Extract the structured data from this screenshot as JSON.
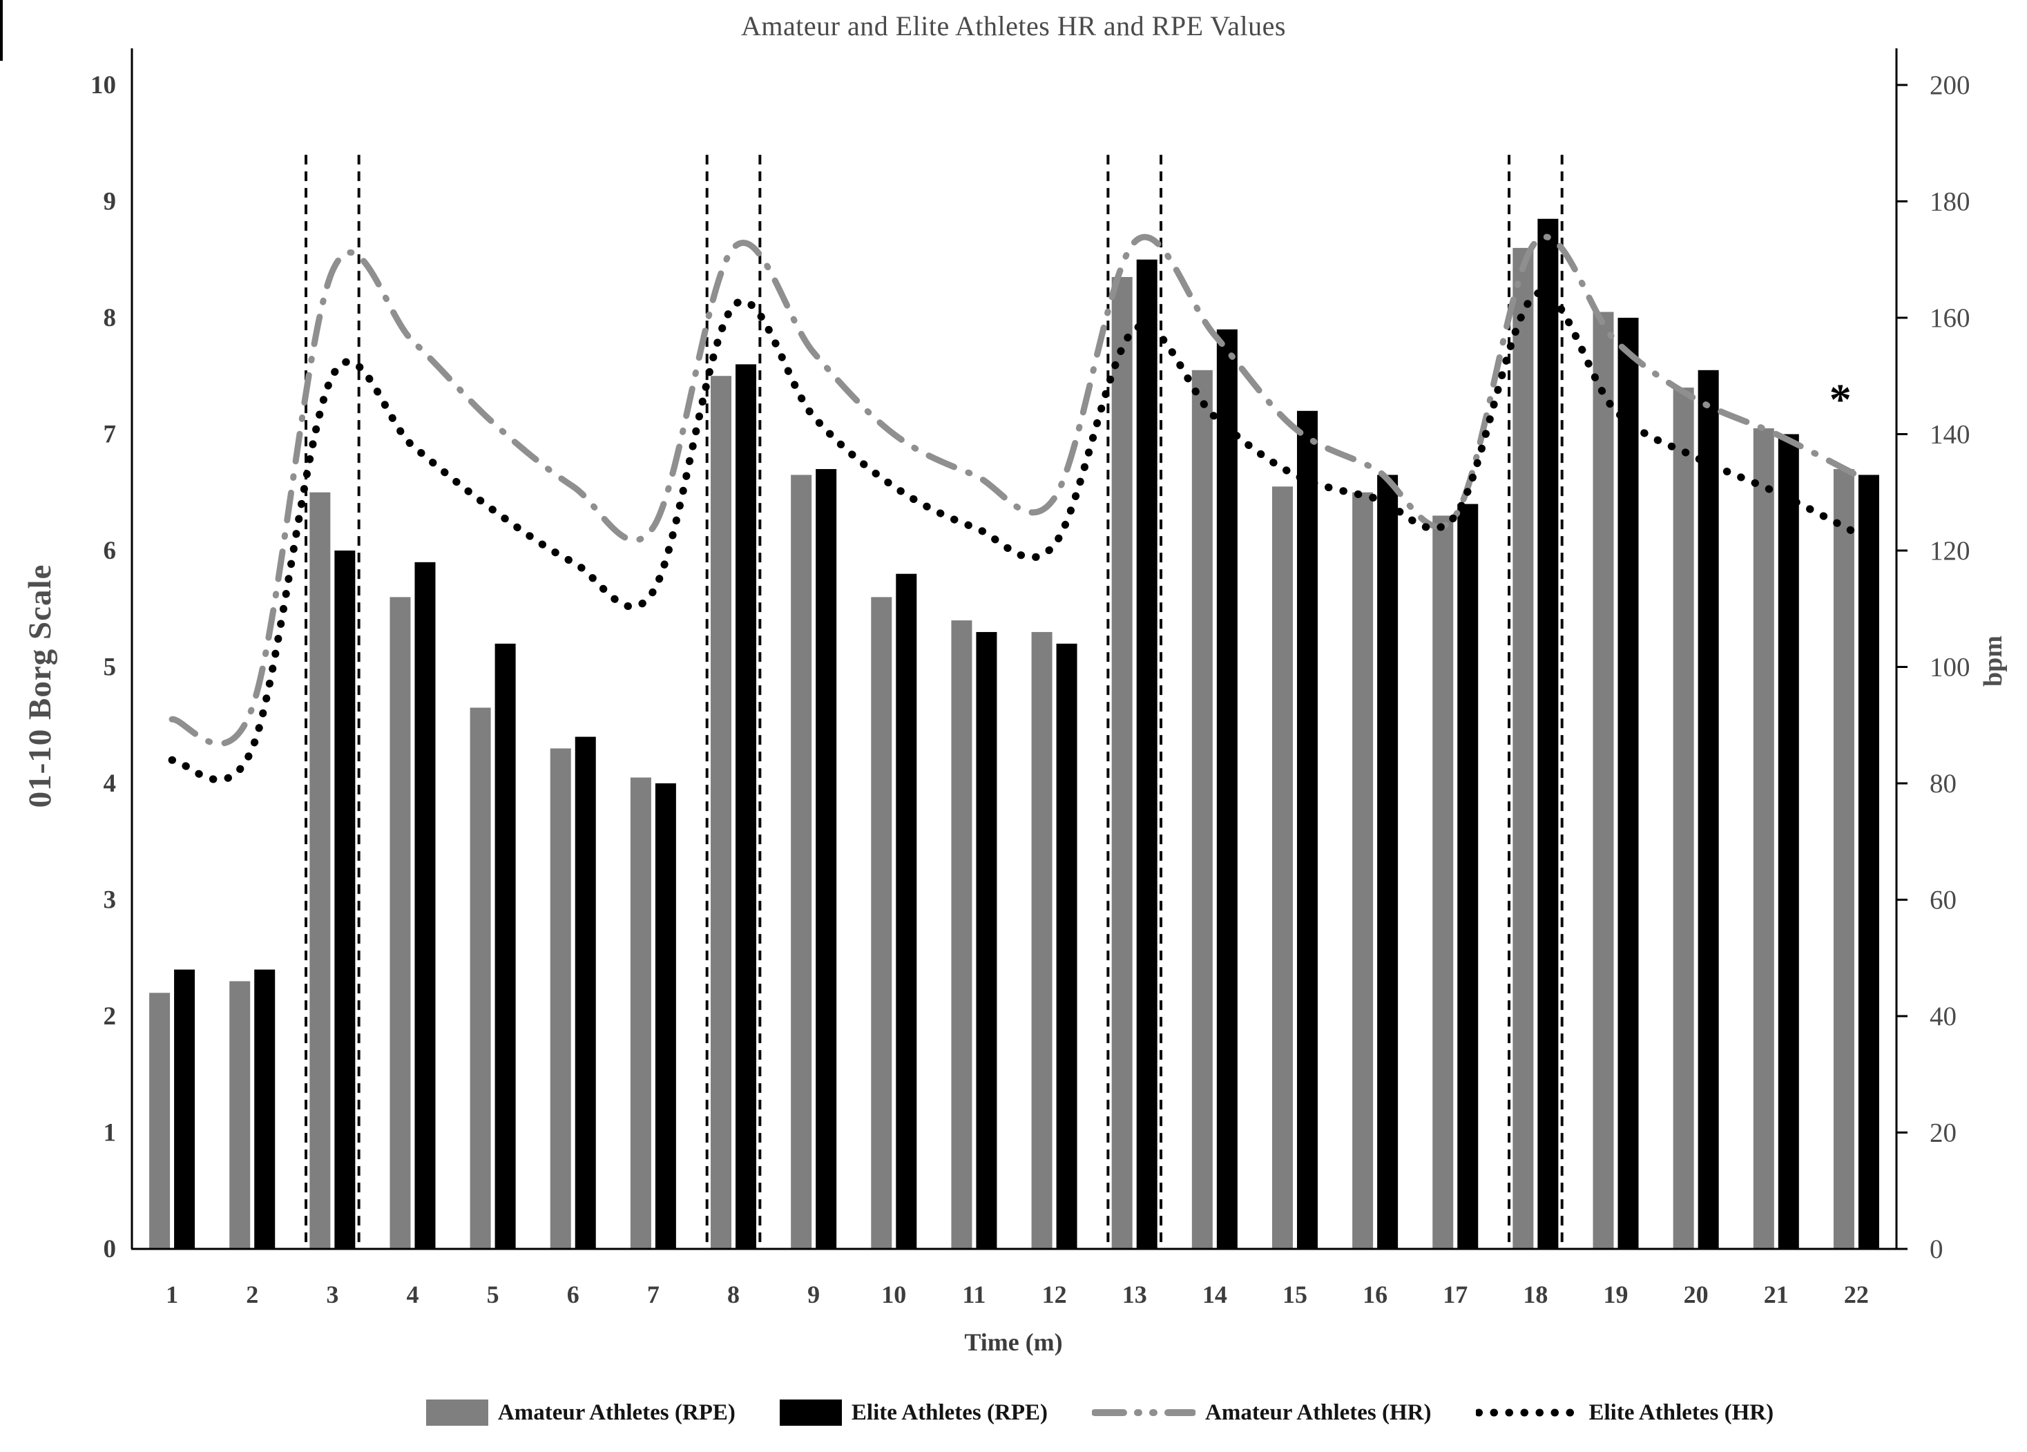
{
  "title": "Amateur and Elite Athletes HR and RPE Values",
  "chart_data": {
    "type": "bar",
    "subtype": "combo bar+line, dual axis",
    "title": "Amateur and Elite Athletes HR and RPE Values",
    "xlabel": "Time (m)",
    "ylabel_left": "01-10 Borg Scale",
    "ylabel_right": "bpm",
    "x": [
      1,
      2,
      3,
      4,
      5,
      6,
      7,
      8,
      9,
      10,
      11,
      12,
      13,
      14,
      15,
      16,
      17,
      18,
      19,
      20,
      21,
      22
    ],
    "left_axis": {
      "min": 0,
      "max": 10,
      "ticks": [
        0,
        1,
        2,
        3,
        4,
        5,
        6,
        7,
        8,
        9,
        10
      ]
    },
    "right_axis": {
      "min": 0,
      "max": 200,
      "ticks": [
        0,
        20,
        40,
        60,
        80,
        100,
        120,
        140,
        160,
        180,
        200
      ]
    },
    "grid": false,
    "legend_position": "bottom",
    "series": [
      {
        "name": "Amateur Athletes (RPE)",
        "type": "bar",
        "axis": "left",
        "color": "#7f7f7f",
        "values": [
          2.2,
          2.3,
          6.5,
          5.6,
          4.65,
          4.3,
          4.05,
          7.5,
          6.65,
          5.6,
          5.4,
          5.3,
          8.35,
          7.55,
          6.55,
          6.5,
          6.3,
          8.6,
          8.05,
          7.4,
          7.05,
          6.7
        ]
      },
      {
        "name": "Elite Athletes (RPE)",
        "type": "bar",
        "axis": "left",
        "color": "#000000",
        "values": [
          2.4,
          2.4,
          6.0,
          5.9,
          5.2,
          4.4,
          4.0,
          7.6,
          6.7,
          5.8,
          5.3,
          5.2,
          8.5,
          7.9,
          7.2,
          6.65,
          6.4,
          8.85,
          8.0,
          7.55,
          7.0,
          6.65
        ]
      },
      {
        "name": "Amateur Athletes (HR)",
        "type": "line",
        "style": "dash-dot",
        "axis": "right",
        "color": "#8f8f8f",
        "values": [
          91,
          93,
          168,
          156,
          142,
          131,
          124,
          172,
          154,
          140,
          133,
          129,
          173,
          157,
          141,
          134,
          126,
          173,
          156,
          146,
          140,
          133
        ]
      },
      {
        "name": "Elite Athletes (HR)",
        "type": "line",
        "style": "dotted",
        "axis": "right",
        "color": "#000000",
        "values": [
          84,
          86,
          150,
          138,
          127,
          118,
          113,
          162,
          143,
          131,
          124,
          121,
          158,
          143,
          133,
          129,
          126,
          164,
          144,
          136,
          130,
          123
        ]
      }
    ],
    "highlight_dashed_lines": {
      "times": [
        3,
        8,
        13,
        18
      ],
      "offset": 0.33,
      "top_borg": 9.4
    },
    "annotation": {
      "text": "*",
      "time": 21.8,
      "borg": 7.42
    }
  }
}
